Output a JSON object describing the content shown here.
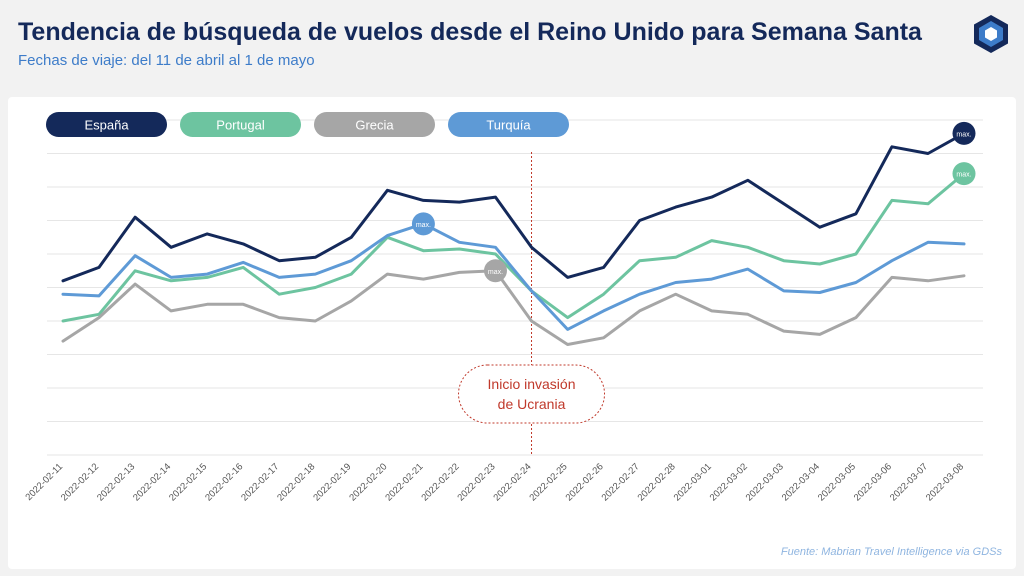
{
  "header": {
    "title": "Tendencia de búsqueda de vuelos desde el Reino Unido para Semana Santa",
    "subtitle": "Fechas de viaje: del 11 de abril al 1 de mayo"
  },
  "source": "Fuente: Mabrian Travel Intelligence via GDSs",
  "colors": {
    "españa": "#14295a",
    "portugal": "#6dc4a0",
    "grecia": "#a6a6a6",
    "turquia": "#5e9ad6",
    "annotation": "#c0392b"
  },
  "chart_data": {
    "type": "line",
    "title": "",
    "xlabel": "",
    "ylabel": "",
    "grid": true,
    "legend": "top-left",
    "ylim": [
      0,
      10
    ],
    "x": [
      "2022-02-11",
      "2022-02-12",
      "2022-02-13",
      "2022-02-14",
      "2022-02-15",
      "2022-02-16",
      "2022-02-17",
      "2022-02-18",
      "2022-02-19",
      "2022-02-20",
      "2022-02-21",
      "2022-02-22",
      "2022-02-23",
      "2022-02-24",
      "2022-02-25",
      "2022-02-26",
      "2022-02-27",
      "2022-02-28",
      "2022-03-01",
      "2022-03-02",
      "2022-03-03",
      "2022-03-04",
      "2022-03-05",
      "2022-03-06",
      "2022-03-07",
      "2022-03-08"
    ],
    "series": [
      {
        "name": "España",
        "key": "españa",
        "values": [
          5.2,
          5.6,
          7.1,
          6.2,
          6.6,
          6.3,
          5.8,
          5.9,
          6.5,
          7.9,
          7.6,
          7.55,
          7.7,
          6.2,
          5.3,
          5.6,
          7.0,
          7.4,
          7.7,
          8.2,
          7.5,
          6.8,
          7.2,
          9.2,
          9.0,
          9.6
        ],
        "max_label": "max."
      },
      {
        "name": "Portugal",
        "key": "portugal",
        "values": [
          4.0,
          4.2,
          5.5,
          5.2,
          5.3,
          5.6,
          4.8,
          5.0,
          5.4,
          6.5,
          6.1,
          6.15,
          6.0,
          4.9,
          4.1,
          4.8,
          5.8,
          5.9,
          6.4,
          6.2,
          5.8,
          5.7,
          6.0,
          7.6,
          7.5,
          8.4
        ],
        "max_label": "max."
      },
      {
        "name": "Grecia",
        "key": "grecia",
        "values": [
          3.4,
          4.1,
          5.1,
          4.3,
          4.5,
          4.5,
          4.1,
          4.0,
          4.6,
          5.4,
          5.25,
          5.45,
          5.5,
          4.0,
          3.3,
          3.5,
          4.3,
          4.8,
          4.3,
          4.2,
          3.7,
          3.6,
          4.1,
          5.3,
          5.2,
          5.35
        ],
        "max_label": "max."
      },
      {
        "name": "Turquía",
        "key": "turquia",
        "values": [
          4.8,
          4.75,
          5.95,
          5.3,
          5.4,
          5.75,
          5.3,
          5.4,
          5.8,
          6.55,
          6.9,
          6.35,
          6.2,
          4.9,
          3.75,
          4.3,
          4.8,
          5.15,
          5.25,
          5.55,
          4.9,
          4.85,
          5.15,
          5.8,
          6.35,
          6.3
        ],
        "max_label": "max."
      }
    ],
    "max_points": {
      "españa": 25,
      "portugal": 25,
      "grecia": 12,
      "turquia": 10
    },
    "annotation": {
      "text_line1": "Inicio invasión",
      "text_line2": "de Ucrania",
      "x": "2022-02-24"
    }
  }
}
